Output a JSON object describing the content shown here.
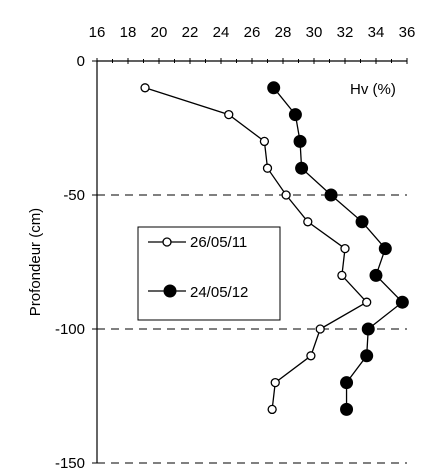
{
  "chart_data": {
    "type": "line",
    "xlabel": "Hv (%)",
    "ylabel": "Profondeur (cm)",
    "xlim": [
      16,
      36
    ],
    "ylim": [
      -150,
      0
    ],
    "x_ticks": [
      16,
      18,
      20,
      22,
      24,
      26,
      28,
      30,
      32,
      34,
      36
    ],
    "y_ticks": [
      0,
      -50,
      -100,
      -150
    ],
    "x_axis_position": "top",
    "grid": "dashed horizontal lines at -50, -100, -150",
    "legend_position": "center-left",
    "series": [
      {
        "name": "26/05/11",
        "marker": "open-circle",
        "points": [
          {
            "x": 19.1,
            "y": -10
          },
          {
            "x": 24.5,
            "y": -20
          },
          {
            "x": 26.8,
            "y": -30
          },
          {
            "x": 27.0,
            "y": -40
          },
          {
            "x": 28.2,
            "y": -50
          },
          {
            "x": 29.6,
            "y": -60
          },
          {
            "x": 32.0,
            "y": -70
          },
          {
            "x": 31.8,
            "y": -80
          },
          {
            "x": 33.4,
            "y": -90
          },
          {
            "x": 30.4,
            "y": -100
          },
          {
            "x": 29.8,
            "y": -110
          },
          {
            "x": 27.5,
            "y": -120
          },
          {
            "x": 27.3,
            "y": -130
          }
        ]
      },
      {
        "name": "24/05/12",
        "marker": "filled-circle",
        "points": [
          {
            "x": 27.4,
            "y": -10
          },
          {
            "x": 28.8,
            "y": -20
          },
          {
            "x": 29.1,
            "y": -30
          },
          {
            "x": 29.2,
            "y": -40
          },
          {
            "x": 31.1,
            "y": -50
          },
          {
            "x": 33.1,
            "y": -60
          },
          {
            "x": 34.6,
            "y": -70
          },
          {
            "x": 34.0,
            "y": -80
          },
          {
            "x": 35.7,
            "y": -90
          },
          {
            "x": 33.5,
            "y": -100
          },
          {
            "x": 33.4,
            "y": -110
          },
          {
            "x": 32.1,
            "y": -120
          },
          {
            "x": 32.1,
            "y": -130
          }
        ]
      }
    ]
  }
}
